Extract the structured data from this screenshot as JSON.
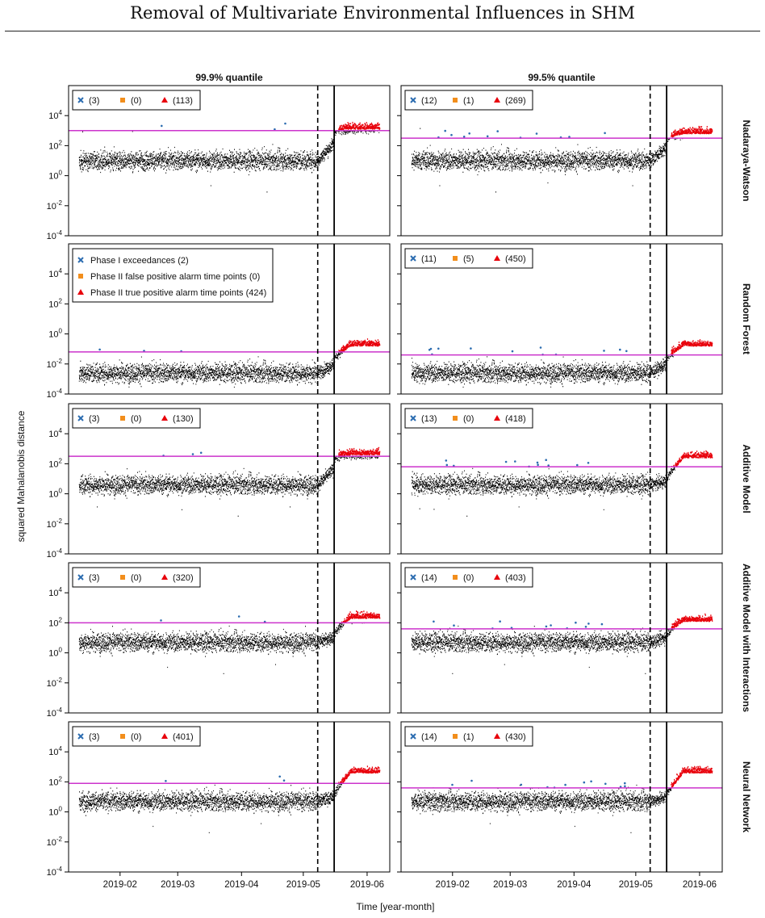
{
  "page": {
    "title": "Removal of Multivariate Environmental Influences in SHM"
  },
  "chart_data": {
    "type": "scatter",
    "ylabel": "squared Mahalanobis distance",
    "xlabel": "Time [year-month]",
    "columns": [
      "99.9% quantile",
      "99.5% quantile"
    ],
    "rows": [
      "Nadaraya-Watson",
      "Random Forest",
      "Additive Model",
      "Additive Model with Interactions",
      "Neural Network"
    ],
    "x_tick_labels": [
      "2019-02",
      "2019-03",
      "2019-04",
      "2019-05",
      "2019-06"
    ],
    "y_tick_labels": [
      "10^4",
      "10^2",
      "10^0",
      "10^-2",
      "10^-4"
    ],
    "y_scale": "log10",
    "ylim": [
      "1e-4",
      "1e6"
    ],
    "xlim": [
      "2019-01-07",
      "2019-06-12"
    ],
    "phase1_end": "2019-05-08",
    "damage_onset": "2019-05-16",
    "series_colors": {
      "phase1": "#000000",
      "phase1_exceed": "#2b6cb0",
      "false_alarm": "#f28e1c",
      "true_alarm": "#e8000b",
      "threshold": "#cc33cc"
    },
    "legend_full": {
      "exceed": "Phase I exceedances (2)",
      "false": "Phase II false positive alarm time points (0)",
      "true": "Phase II true positive alarm time points (424)"
    },
    "panels": [
      {
        "row": "Nadaraya-Watson",
        "col": "99.9% quantile",
        "threshold_log": 3.0,
        "base_log": 1.0,
        "rise_end_log": 3.0,
        "damage_log": 3.1,
        "counts": [
          "(3)",
          "(0)",
          "(113)"
        ]
      },
      {
        "row": "Nadaraya-Watson",
        "col": "99.5% quantile",
        "threshold_log": 2.5,
        "base_log": 1.0,
        "rise_end_log": 2.5,
        "damage_log": 2.8,
        "counts": [
          "(12)",
          "(1)",
          "(269)"
        ]
      },
      {
        "row": "Random Forest",
        "col": "99.9% quantile",
        "threshold_log": -1.2,
        "base_log": -2.6,
        "rise_end_log": -1.6,
        "damage_log": -0.8,
        "counts": [
          "",
          "",
          ""
        ]
      },
      {
        "row": "Random Forest",
        "col": "99.5% quantile",
        "threshold_log": -1.4,
        "base_log": -2.6,
        "rise_end_log": -1.6,
        "damage_log": -0.8,
        "counts": [
          "(11)",
          "(5)",
          "(450)"
        ]
      },
      {
        "row": "Additive Model",
        "col": "99.9% quantile",
        "threshold_log": 2.5,
        "base_log": 0.6,
        "rise_end_log": 2.4,
        "damage_log": 2.6,
        "counts": [
          "(3)",
          "(0)",
          "(130)"
        ]
      },
      {
        "row": "Additive Model",
        "col": "99.5% quantile",
        "threshold_log": 1.8,
        "base_log": 0.6,
        "rise_end_log": 1.0,
        "damage_log": 2.4,
        "counts": [
          "(13)",
          "(0)",
          "(418)"
        ]
      },
      {
        "row": "Additive Model with Interactions",
        "col": "99.9% quantile",
        "threshold_log": 2.0,
        "base_log": 0.7,
        "rise_end_log": 1.3,
        "damage_log": 2.3,
        "counts": [
          "(3)",
          "(0)",
          "(320)"
        ]
      },
      {
        "row": "Additive Model with Interactions",
        "col": "99.5% quantile",
        "threshold_log": 1.6,
        "base_log": 0.7,
        "rise_end_log": 1.3,
        "damage_log": 2.1,
        "counts": [
          "(14)",
          "(0)",
          "(403)"
        ]
      },
      {
        "row": "Neural Network",
        "col": "99.9% quantile",
        "threshold_log": 1.9,
        "base_log": 0.7,
        "rise_end_log": 1.2,
        "damage_log": 2.6,
        "counts": [
          "(3)",
          "(0)",
          "(401)"
        ]
      },
      {
        "row": "Neural Network",
        "col": "99.5% quantile",
        "threshold_log": 1.6,
        "base_log": 0.7,
        "rise_end_log": 1.2,
        "damage_log": 2.6,
        "counts": [
          "(14)",
          "(1)",
          "(430)"
        ]
      }
    ]
  }
}
